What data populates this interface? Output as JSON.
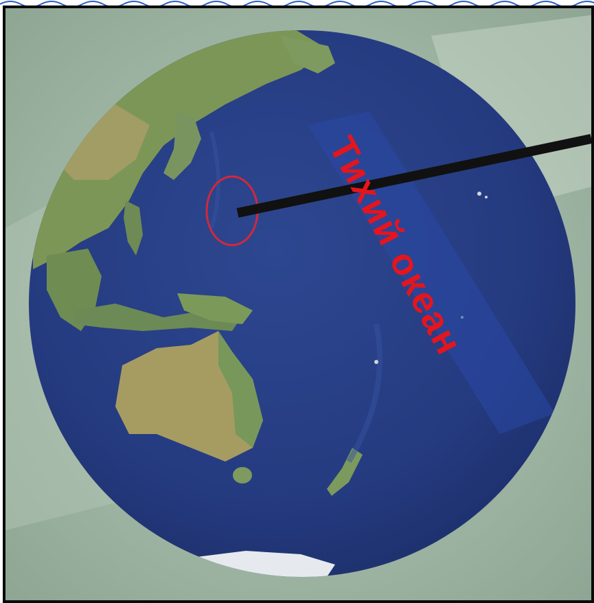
{
  "map": {
    "ocean_label": "Тихий океан",
    "colors": {
      "ocean": "#253a7d",
      "ocean_light": "#2f4a93",
      "land": "#7f9a5a",
      "land_dry": "#b6a46a",
      "ice": "#e7ebef",
      "label": "#e5151d",
      "pointer": "#111111",
      "background": "#9fb4a3",
      "notebook_line": "#2a5fc8"
    },
    "marker": {
      "type": "circle",
      "color": "#d3283a"
    }
  }
}
